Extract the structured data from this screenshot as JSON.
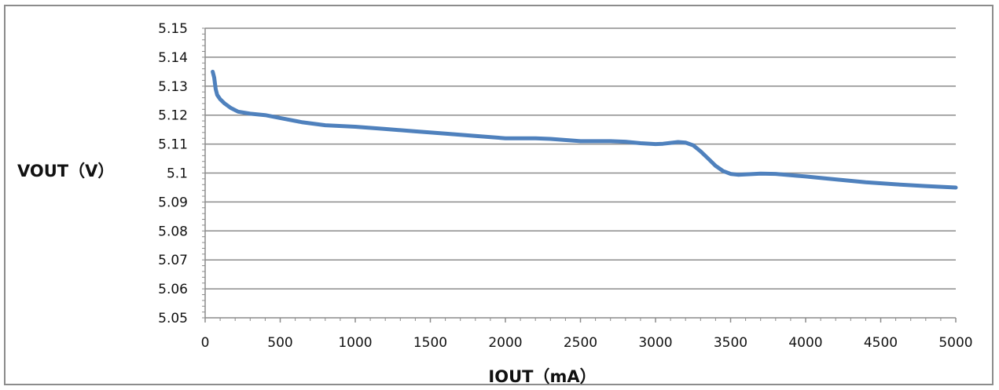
{
  "chart_data": {
    "type": "line",
    "title": "",
    "xlabel": "IOUT（mA）",
    "ylabel": "VOUT（V）",
    "xlim": [
      0,
      5000
    ],
    "ylim": [
      5.05,
      5.15
    ],
    "x_ticks": [
      "0",
      "500",
      "1000",
      "1500",
      "2000",
      "2500",
      "3000",
      "3500",
      "4000",
      "4500",
      "5000"
    ],
    "y_ticks": [
      "5.05",
      "5.06",
      "5.07",
      "5.08",
      "5.09",
      "5.1",
      "5.11",
      "5.12",
      "5.13",
      "5.14",
      "5.15"
    ],
    "grid": "horizontal",
    "legend": "none",
    "series": [
      {
        "color": "#4f81bd",
        "x": [
          50,
          60,
          70,
          80,
          100,
          130,
          170,
          220,
          300,
          400,
          500,
          650,
          800,
          1000,
          1200,
          1400,
          1600,
          1800,
          2000,
          2200,
          2300,
          2500,
          2700,
          2800,
          2900,
          3000,
          3050,
          3100,
          3150,
          3200,
          3250,
          3300,
          3350,
          3400,
          3450,
          3500,
          3550,
          3600,
          3700,
          3800,
          4000,
          4200,
          4400,
          4600,
          4800,
          5000
        ],
        "y": [
          5.135,
          5.133,
          5.129,
          5.127,
          5.1255,
          5.124,
          5.1225,
          5.1212,
          5.1205,
          5.12,
          5.119,
          5.1175,
          5.1165,
          5.116,
          5.1152,
          5.1144,
          5.1136,
          5.1128,
          5.112,
          5.112,
          5.1118,
          5.111,
          5.111,
          5.1108,
          5.1103,
          5.11,
          5.1101,
          5.1104,
          5.1107,
          5.1105,
          5.1096,
          5.1075,
          5.105,
          5.1025,
          5.1007,
          5.0997,
          5.0994,
          5.0995,
          5.0998,
          5.0997,
          5.0988,
          5.0978,
          5.0968,
          5.0961,
          5.0955,
          5.095
        ]
      }
    ]
  }
}
